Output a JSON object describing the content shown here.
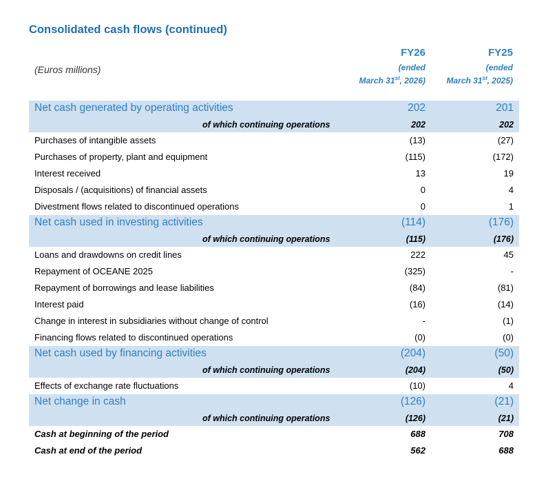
{
  "title": "Consolidated cash flows (continued)",
  "unit_label": "(Euros millions)",
  "columns": [
    {
      "fy": "FY26",
      "ended": "(ended",
      "date_prefix": "March 31",
      "sup": "st",
      "date_suffix": ", 2026)"
    },
    {
      "fy": "FY25",
      "ended": "(ended",
      "date_prefix": "March 31",
      "sup": "st",
      "date_suffix": ", 2025)"
    }
  ],
  "rows": [
    {
      "type": "total",
      "label": "Net cash generated by operating activities",
      "fy26": "202",
      "fy25": "201"
    },
    {
      "type": "cont",
      "label": "of which continuing operations",
      "fy26": "202",
      "fy25": "202"
    },
    {
      "type": "line",
      "label": "Purchases of intangible assets",
      "fy26": "(13)",
      "fy25": "(27)"
    },
    {
      "type": "line",
      "label": "Purchases of property, plant and equipment",
      "fy26": "(115)",
      "fy25": "(172)"
    },
    {
      "type": "line",
      "label": "Interest received",
      "fy26": "13",
      "fy25": "19"
    },
    {
      "type": "line",
      "label": "Disposals / (acquisitions) of financial assets",
      "fy26": "0",
      "fy25": "4"
    },
    {
      "type": "line",
      "label": "Divestment flows related to discontinued operations",
      "fy26": "0",
      "fy25": "1"
    },
    {
      "type": "total",
      "label": "Net cash used in investing activities",
      "fy26": "(114)",
      "fy25": "(176)"
    },
    {
      "type": "cont",
      "label": "of which continuing operations",
      "fy26": "(115)",
      "fy25": "(176)"
    },
    {
      "type": "line",
      "label": "Loans and drawdowns on credit lines",
      "fy26": "222",
      "fy25": "45"
    },
    {
      "type": "line",
      "label": "Repayment of OCEANE 2025",
      "fy26": "(325)",
      "fy25": "-"
    },
    {
      "type": "line",
      "label": "Repayment of borrowings and lease liabilities",
      "fy26": "(84)",
      "fy25": "(81)"
    },
    {
      "type": "line",
      "label": "Interest paid",
      "fy26": "(16)",
      "fy25": "(14)"
    },
    {
      "type": "line",
      "label": "Change in interest in subsidiaries without change of control",
      "fy26": "-",
      "fy25": "(1)"
    },
    {
      "type": "line",
      "label": "Financing flows related to discontinued operations",
      "fy26": "(0)",
      "fy25": "(0)"
    },
    {
      "type": "total",
      "label": "Net cash used by financing activities",
      "fy26": "(204)",
      "fy25": "(50)"
    },
    {
      "type": "cont",
      "label": "of which continuing operations",
      "fy26": "(204)",
      "fy25": "(50)"
    },
    {
      "type": "line",
      "label": "Effects of exchange rate fluctuations",
      "fy26": "(10)",
      "fy25": "4"
    },
    {
      "type": "total",
      "label": "Net change in cash",
      "fy26": "(126)",
      "fy25": "(21)"
    },
    {
      "type": "cont",
      "label": "of which continuing operations",
      "fy26": "(126)",
      "fy25": "(21)"
    },
    {
      "type": "bold",
      "label": "Cash at beginning of the period",
      "fy26": "688",
      "fy25": "708"
    },
    {
      "type": "bold",
      "label": "Cash at end of the period",
      "fy26": "562",
      "fy25": "688"
    }
  ]
}
